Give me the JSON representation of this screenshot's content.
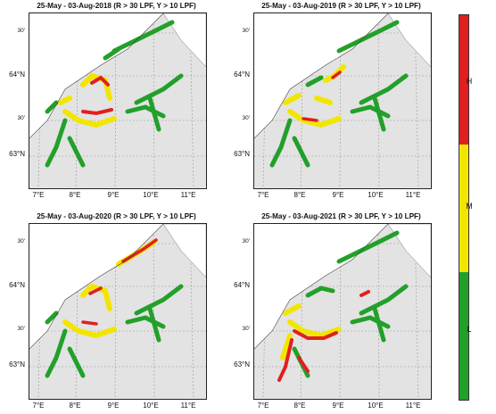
{
  "panels": [
    {
      "title": "25-May - 03-Aug-2018 (R > 30 LPF, Y > 10 LPF)"
    },
    {
      "title": "25-May - 03-Aug-2019 (R > 30 LPF, Y > 10 LPF)"
    },
    {
      "title": "25-May - 03-Aug-2020 (R > 30 LPF, Y > 10 LPF)"
    },
    {
      "title": "25-May - 03-Aug-2021 (R > 30 LPF, Y > 10 LPF)"
    }
  ],
  "axes": {
    "lat_labels": [
      "30'",
      "64°N",
      "30'",
      "63°N"
    ],
    "lon_labels": [
      "7°E",
      "8°E",
      "9°E",
      "10°E",
      "11°E"
    ]
  },
  "colorbar": {
    "levels": [
      {
        "label": "H",
        "color": "#e02020"
      },
      {
        "label": "M",
        "color": "#f2e600"
      },
      {
        "label": "L",
        "color": "#22a02a"
      }
    ]
  },
  "colors": {
    "high": "#e02020",
    "medium": "#f2e600",
    "low": "#22a02a",
    "land": "#e3e3e3"
  }
}
